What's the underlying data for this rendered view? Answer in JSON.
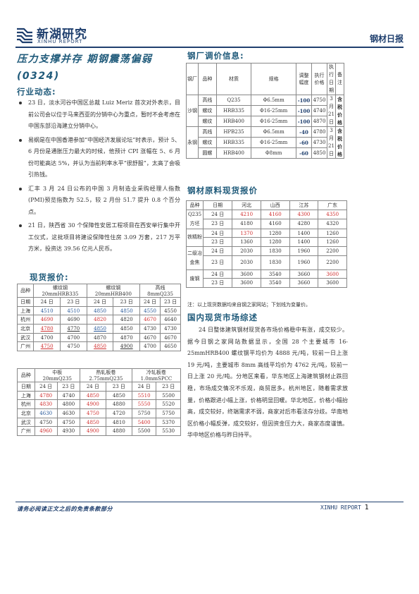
{
  "header": {
    "logo_cn": "新湖研究",
    "logo_en": "XINHU REPORT",
    "report_title": "钢材日报"
  },
  "headline": {
    "line1": "压力支撑并存 期钢震荡偏弱",
    "line2": "(0324)"
  },
  "industry_news": {
    "title": "行业动态:",
    "items": [
      "23 日，淡水河谷中国区总裁 Luiz Meriz 首次对外表示，目前公司会以位于马来西亚的分销中心为重点，暂时不会考虑在中国东部沿海建立分销中心。",
      "易纲是在中国香港参加“中国经济发展论坛”时表示，预计 5、6 月份是通胀压力最大的时候，他预计 CPI 涨幅在 5、6 月份可能高达 5%，并认为当前利率水平“很舒服”，太高了会吸引热钱。",
      "汇丰 3 月 24 日公布的中国 3 月制造业采购经理人指数(PMI)预览指数为 52.5，较 2 月份 51.7 提升 0.8 个百分点。",
      "21 日，陕西省 30 个保障性安居工程项目在西安举行集中开工仪式，这批项目将建设保障性住房 3.09 万套，217 万平方米，投资达 39.56 亿元人民币。"
    ]
  },
  "spot_price": {
    "title": "现货报价:",
    "table1": {
      "corner": "品种",
      "products": [
        "螺纹钢",
        "螺纹钢",
        "高线"
      ],
      "specs": [
        "20mmHRB335",
        "20mmHRB400",
        "8mmQ235"
      ],
      "date_label": "日期",
      "dates": [
        "24 日",
        "23 日",
        "24 日",
        "23 日",
        "24 日",
        "23 日"
      ],
      "rows": [
        {
          "city": "上海",
          "values": [
            "4510",
            "4510",
            "4850",
            "4850",
            "4550",
            "4550"
          ]
        },
        {
          "city": "杭州",
          "values": [
            "4690",
            "4690",
            "4820",
            "4820",
            "4670",
            "4640"
          ]
        },
        {
          "city": "北京",
          "values": [
            "4780",
            "4770",
            "4850",
            "4850",
            "4730",
            "4730"
          ]
        },
        {
          "city": "武汉",
          "values": [
            "4700",
            "4700",
            "4870",
            "4870",
            "4670",
            "4670"
          ]
        },
        {
          "city": "广州",
          "values": [
            "4750",
            "4750",
            "4850",
            "4900",
            "4700",
            "4650"
          ]
        }
      ]
    },
    "table2": {
      "corner": "品种",
      "products": [
        "中板",
        "热轧板卷",
        "冷轧板卷"
      ],
      "specs": [
        "20mmQ235",
        "2.75mmQ235",
        "1.0mmSPCC"
      ],
      "date_label": "日期",
      "dates": [
        "24 日",
        "23 日",
        "24 日",
        "23 日",
        "24 日",
        "23 日"
      ],
      "rows": [
        {
          "city": "上海",
          "values": [
            "4780",
            "4740",
            "4850",
            "4850",
            "5510",
            "5500"
          ]
        },
        {
          "city": "杭州",
          "values": [
            "4830",
            "4800",
            "4900",
            "4880",
            "5550",
            "5520"
          ]
        },
        {
          "city": "北京",
          "values": [
            "4630",
            "4630",
            "4750",
            "4720",
            "5750",
            "5750"
          ]
        },
        {
          "city": "武汉",
          "values": [
            "4750",
            "4750",
            "4850",
            "4810",
            "5400",
            "5370"
          ]
        },
        {
          "city": "广州",
          "values": [
            "4960",
            "4930",
            "4900",
            "4880",
            "5500",
            "5530"
          ]
        }
      ]
    }
  },
  "mill_adjust": {
    "title": "钢厂调价信息:",
    "headers": [
      "钢厂",
      "品种",
      "材质",
      "规格",
      "调整幅度",
      "执行价格",
      "执行日期",
      "备注"
    ],
    "mills": [
      {
        "name": "沙钢",
        "date": "3月21日",
        "remark": "含税价格",
        "rows": [
          {
            "product": "高线",
            "grade": "Q235",
            "spec": "Φ6.5mm",
            "change": "-100",
            "price": "4750"
          },
          {
            "product": "螺纹",
            "grade": "HRB335",
            "spec": "Φ16-25mm",
            "change": "-100",
            "price": "4740"
          },
          {
            "product": "螺纹",
            "grade": "HRB400",
            "spec": "Φ16-25mm",
            "change": "-100",
            "price": "4870"
          }
        ]
      },
      {
        "name": "永钢",
        "date": "3月21日",
        "remark": "含税价格",
        "rows": [
          {
            "product": "高线",
            "grade": "HPB235",
            "spec": "Φ6.5mm",
            "change": "-40",
            "price": "4780"
          },
          {
            "product": "螺纹",
            "grade": "HRB335",
            "spec": "Φ16-25mm",
            "change": "-60",
            "price": "4730"
          },
          {
            "product": "圆螺",
            "grade": "HRB400",
            "spec": "Φ8mm",
            "change": "-60",
            "price": "4850"
          }
        ]
      }
    ]
  },
  "raw_material": {
    "title": "钢材原料现货报价",
    "headers": [
      "品种",
      "日期",
      "河北",
      "山西",
      "江苏",
      "广东"
    ],
    "groups": [
      {
        "name": "Q235方坯",
        "rows": [
          {
            "date": "24 日",
            "values": [
              "4210",
              "4160",
              "4300",
              "4350"
            ]
          },
          {
            "date": "23 日",
            "values": [
              "4180",
              "4160",
              "4280",
              "4320"
            ]
          }
        ]
      },
      {
        "name": "铁精粉",
        "rows": [
          {
            "date": "24 日",
            "values": [
              "1370",
              "1280",
              "1400",
              "1260"
            ]
          },
          {
            "date": "23 日",
            "values": [
              "1360",
              "1280",
              "1400",
              "1260"
            ]
          }
        ]
      },
      {
        "name": "二级冶金焦",
        "rows": [
          {
            "date": "24 日",
            "values": [
              "2030",
              "1830",
              "1960",
              "2200"
            ]
          },
          {
            "date": "23 日",
            "values": [
              "2030",
              "1830",
              "1960",
              "2200"
            ]
          }
        ]
      },
      {
        "name": "废钢",
        "rows": [
          {
            "date": "24 日",
            "values": [
              "3600",
              "3540",
              "3660",
              "3600"
            ]
          },
          {
            "date": "23 日",
            "values": [
              "3600",
              "3540",
              "3660",
              "3600"
            ]
          }
        ]
      }
    ],
    "note": "注：以上现货数据均来自钢之家网站；下划线为变量价。"
  },
  "market_review": {
    "title": "国内现货市场综述",
    "text": "24 日整体建筑钢材现货各市场价格稳中有涨，成交较少。据今日钢之家网站数据显示，全国 28 个主要城市 16-25mmHRB400 螺纹钢平均价为 4888 元/吨，较前一日上涨 19 元/吨，主要城市 8mm 高线平均价为 4762 元/吨，较前一日上涨 20 元/吨。分地区来看，华东地区上海建筑钢材止跌回稳，市场成交情况不乐观，商贸居多。杭州地区，随着需求放量，价格跟进小幅上涨，价格明显回暖。华北地区，价格小幅抬高，成交较好，终端需求不弱，商家对后市看法存分歧。华南地区价格小幅反弹，成交较好，但因资金压力大，商家态度谨慎。华中地区价格与昨日持平。"
  },
  "footer": {
    "disclaimer": "请务必阅读正文之后的免责条款部分",
    "brand": "XINHU REPORT",
    "page": "1"
  },
  "colors": {
    "brand": "#1f3f6e",
    "accent": "#1f5a7a",
    "highlight_red": "#d03030",
    "highlight_blue": "#2a5a9a"
  }
}
